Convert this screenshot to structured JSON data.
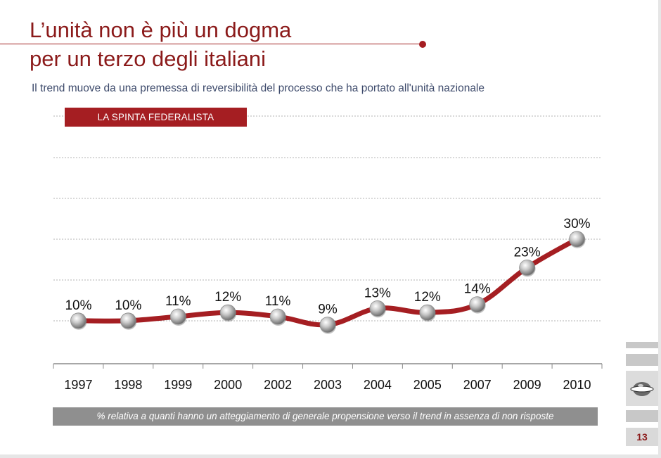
{
  "title_line1": "L’unità non è più un dogma",
  "title_line2": "per un terzo degli italiani",
  "subtitle": "Il trend muove da una  premessa di reversibilità del processo che ha portato all'unità nazionale",
  "badge": "LA SPINTA FEDERALISTA",
  "note": "% relativa a quanti hanno un atteggiamento di generale propensione verso  il trend in assenza di non risposte",
  "page_number": "13",
  "colors": {
    "accent": "#a51e22",
    "title": "#8b1a1a",
    "subtitle": "#3d4a6b",
    "note_bg": "#8f8f8f"
  },
  "chart_data": {
    "type": "line",
    "categories": [
      "1997",
      "1998",
      "1999",
      "2000",
      "2002",
      "2003",
      "2004",
      "2005",
      "2007",
      "2009",
      "2010"
    ],
    "values": [
      10,
      10,
      11,
      12,
      11,
      9,
      13,
      12,
      14,
      23,
      30
    ],
    "data_labels": [
      "10%",
      "10%",
      "11%",
      "12%",
      "11%",
      "9%",
      "13%",
      "12%",
      "14%",
      "23%",
      "30%"
    ],
    "grid": true,
    "line_color": "#a51e22"
  }
}
